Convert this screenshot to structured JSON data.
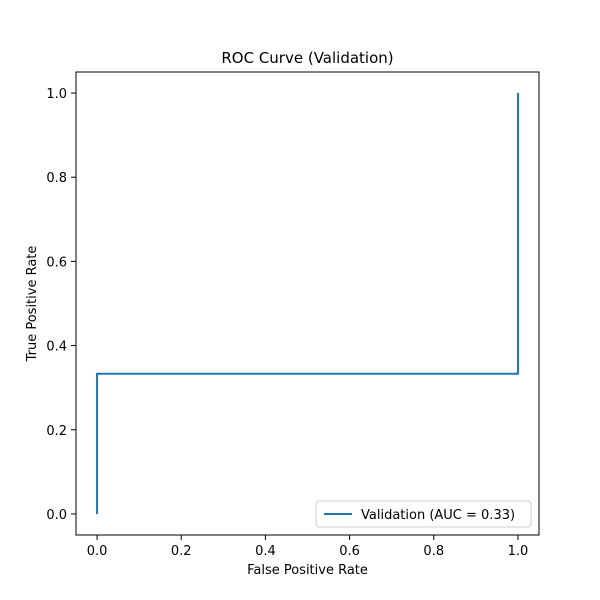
{
  "chart_data": {
    "type": "line",
    "title": "ROC Curve (Validation)",
    "xlabel": "False Positive Rate",
    "ylabel": "True Positive Rate",
    "xlim": [
      -0.05,
      1.05
    ],
    "ylim": [
      -0.05,
      1.05
    ],
    "xticks": [
      0.0,
      0.2,
      0.4,
      0.6,
      0.8,
      1.0
    ],
    "yticks": [
      0.0,
      0.2,
      0.4,
      0.6,
      0.8,
      1.0
    ],
    "xtick_labels": [
      "0.0",
      "0.2",
      "0.4",
      "0.6",
      "0.8",
      "1.0"
    ],
    "ytick_labels": [
      "0.0",
      "0.2",
      "0.4",
      "0.6",
      "0.8",
      "1.0"
    ],
    "grid": false,
    "legend_position": "lower-right",
    "series": [
      {
        "name": "Validation (AUC = 0.33)",
        "color": "#1f77b4",
        "x": [
          0.0,
          0.0,
          1.0,
          1.0
        ],
        "y": [
          0.0,
          0.333,
          0.333,
          1.0
        ]
      }
    ]
  }
}
